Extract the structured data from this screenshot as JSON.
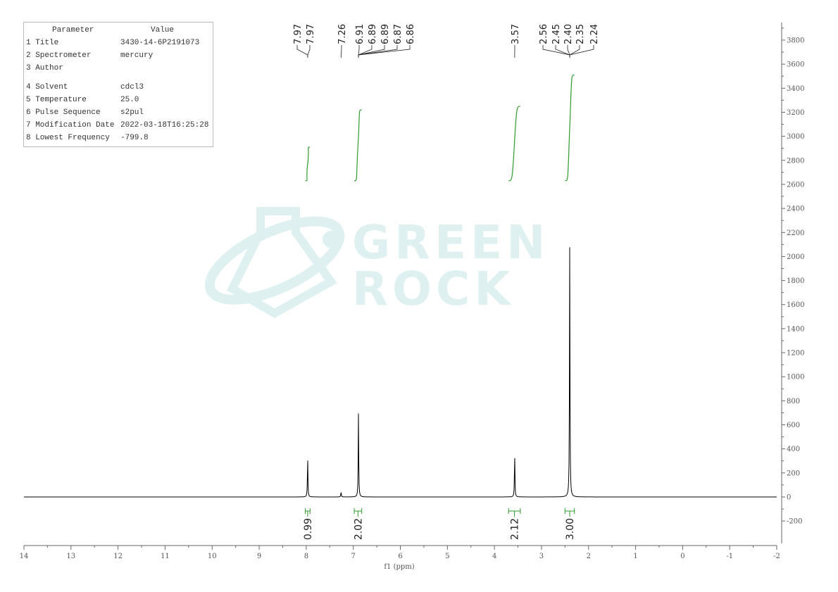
{
  "parameter_table": {
    "headers": [
      "Parameter",
      "Value"
    ],
    "rows": [
      {
        "param": "1 Title",
        "value": "3430-14-6P2191073"
      },
      {
        "param": "2 Spectrometer",
        "value": "mercury"
      },
      {
        "param": "3 Author",
        "value": ""
      },
      {
        "param": "4 Solvent",
        "value": "cdcl3"
      },
      {
        "param": "5 Temperature",
        "value": "25.0"
      },
      {
        "param": "6 Pulse Sequence",
        "value": "s2pul"
      },
      {
        "param": "7 Modification Date",
        "value": "2022-03-18T16:25:28"
      },
      {
        "param": "8 Lowest Frequency",
        "value": "-799.8"
      }
    ]
  },
  "watermark": {
    "text": [
      "GREEN",
      "ROCK"
    ],
    "color": "#dcefef"
  },
  "chart_data": {
    "type": "line",
    "title": "",
    "xlabel": "f1 (ppm)",
    "ylabel": "",
    "xlim": [
      14,
      -2
    ],
    "ylim": [
      -400,
      3900
    ],
    "x_ticks": [
      14,
      13,
      12,
      11,
      10,
      9,
      8,
      7,
      6,
      5,
      4,
      3,
      2,
      1,
      0,
      -1,
      -2
    ],
    "y_ticks": [
      -200,
      0,
      200,
      400,
      600,
      800,
      1000,
      1200,
      1400,
      1600,
      1800,
      2000,
      2200,
      2400,
      2600,
      2800,
      3000,
      3200,
      3400,
      3600,
      3800
    ],
    "y_axis_side": "right",
    "line_color": "#000000",
    "integral_color": "#2e9a2e",
    "peaks": [
      {
        "ppm": 7.97,
        "height": 330
      },
      {
        "ppm": 7.26,
        "height": 45
      },
      {
        "ppm": 6.89,
        "height": 700
      },
      {
        "ppm": 3.57,
        "height": 365
      },
      {
        "ppm": 2.4,
        "height": 2085
      }
    ],
    "peak_labels": [
      {
        "group": [
          "7.97",
          "7.97"
        ],
        "ppm": 7.97
      },
      {
        "group": [
          "7.26"
        ],
        "ppm": 7.26
      },
      {
        "group": [
          "6.91",
          "6.89",
          "6.89",
          "6.87",
          "6.86"
        ],
        "ppm": 6.89
      },
      {
        "group": [
          "3.57"
        ],
        "ppm": 3.57
      },
      {
        "group": [
          "2.56",
          "2.45",
          "2.40",
          "2.35",
          "2.24"
        ],
        "ppm": 2.4
      }
    ],
    "integrals": [
      {
        "from": 8.02,
        "to": 7.92,
        "value": "0.99",
        "rise": [
          2630,
          2910
        ]
      },
      {
        "from": 6.98,
        "to": 6.82,
        "value": "2.02",
        "rise": [
          2630,
          3220
        ]
      },
      {
        "from": 3.7,
        "to": 3.45,
        "value": "2.12",
        "rise": [
          2630,
          3250
        ]
      },
      {
        "from": 2.5,
        "to": 2.3,
        "value": "3.00",
        "rise": [
          2630,
          3510
        ]
      }
    ]
  }
}
